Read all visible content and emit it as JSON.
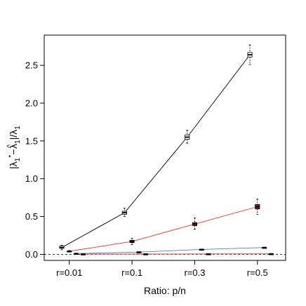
{
  "chart_data": {
    "type": "boxplot-line",
    "title": "",
    "xlabel": "Ratio: p/n",
    "ylabel_parts": {
      "prefix": "|",
      "main1": "λ",
      "sub1": "1",
      "sup1": "*",
      "minus": "−",
      "hat": "^",
      "main2": "λ",
      "sub2": "1",
      "suffix": "|/",
      "main3": "λ",
      "sub3": "1"
    },
    "categories": [
      "r=0.01",
      "r=0.1",
      "r=0.3",
      "r=0.5"
    ],
    "xlim": [
      0.6,
      4.45
    ],
    "ylim": [
      -0.08,
      2.9
    ],
    "yticks": [
      0.0,
      0.5,
      1.0,
      1.5,
      2.0,
      2.5
    ],
    "ytick_labels": [
      "0.0",
      "0.5",
      "1.0",
      "1.5",
      "2.0",
      "2.5"
    ],
    "reference_line": {
      "y": 0,
      "style": "dashed",
      "color": "#000000"
    },
    "series": [
      {
        "color": "#000000",
        "box_fill": "#ffffff",
        "values": [
          0.09,
          0.55,
          1.55,
          2.64
        ],
        "boxes": [
          {
            "whisker_low": 0.06,
            "q1": 0.08,
            "median": 0.09,
            "q3": 0.11,
            "whisker_high": 0.12
          },
          {
            "whisker_low": 0.5,
            "q1": 0.53,
            "median": 0.55,
            "q3": 0.57,
            "whisker_high": 0.61
          },
          {
            "whisker_low": 1.47,
            "q1": 1.52,
            "median": 1.55,
            "q3": 1.58,
            "whisker_high": 1.64
          },
          {
            "whisker_low": 2.51,
            "q1": 2.61,
            "median": 2.64,
            "q3": 2.67,
            "whisker_high": 2.77
          }
        ]
      },
      {
        "color": "#e8322e",
        "box_fill": "#8b1a1a",
        "values": [
          0.04,
          0.17,
          0.4,
          0.63
        ],
        "boxes": [
          {
            "whisker_low": 0.03,
            "q1": 0.035,
            "median": 0.04,
            "q3": 0.045,
            "whisker_high": 0.05
          },
          {
            "whisker_low": 0.13,
            "q1": 0.155,
            "median": 0.17,
            "q3": 0.185,
            "whisker_high": 0.21
          },
          {
            "whisker_low": 0.33,
            "q1": 0.38,
            "median": 0.4,
            "q3": 0.42,
            "whisker_high": 0.48
          },
          {
            "whisker_low": 0.53,
            "q1": 0.6,
            "median": 0.63,
            "q3": 0.66,
            "whisker_high": 0.73
          }
        ]
      },
      {
        "color": "#4a7fc4",
        "box_fill": "#4a7fc4",
        "values": [
          0.01,
          0.03,
          0.065,
          0.09
        ],
        "boxes": [
          {
            "whisker_low": 0.005,
            "q1": 0.008,
            "median": 0.01,
            "q3": 0.012,
            "whisker_high": 0.015
          },
          {
            "whisker_low": 0.025,
            "q1": 0.028,
            "median": 0.03,
            "q3": 0.032,
            "whisker_high": 0.035
          },
          {
            "whisker_low": 0.06,
            "q1": 0.063,
            "median": 0.065,
            "q3": 0.067,
            "whisker_high": 0.07
          },
          {
            "whisker_low": 0.085,
            "q1": 0.088,
            "median": 0.09,
            "q3": 0.092,
            "whisker_high": 0.095
          }
        ]
      },
      {
        "color": "#e8322e",
        "box_fill": "#000000",
        "values": [
          0.003,
          0.004,
          0.005,
          0.006
        ],
        "boxes": [
          {
            "whisker_low": 0.0,
            "q1": 0.001,
            "median": 0.003,
            "q3": 0.005,
            "whisker_high": 0.007
          },
          {
            "whisker_low": 0.0,
            "q1": 0.002,
            "median": 0.004,
            "q3": 0.006,
            "whisker_high": 0.008
          },
          {
            "whisker_low": 0.001,
            "q1": 0.003,
            "median": 0.005,
            "q3": 0.007,
            "whisker_high": 0.009
          },
          {
            "whisker_low": 0.002,
            "q1": 0.004,
            "median": 0.006,
            "q3": 0.008,
            "whisker_high": 0.01
          }
        ]
      }
    ]
  }
}
